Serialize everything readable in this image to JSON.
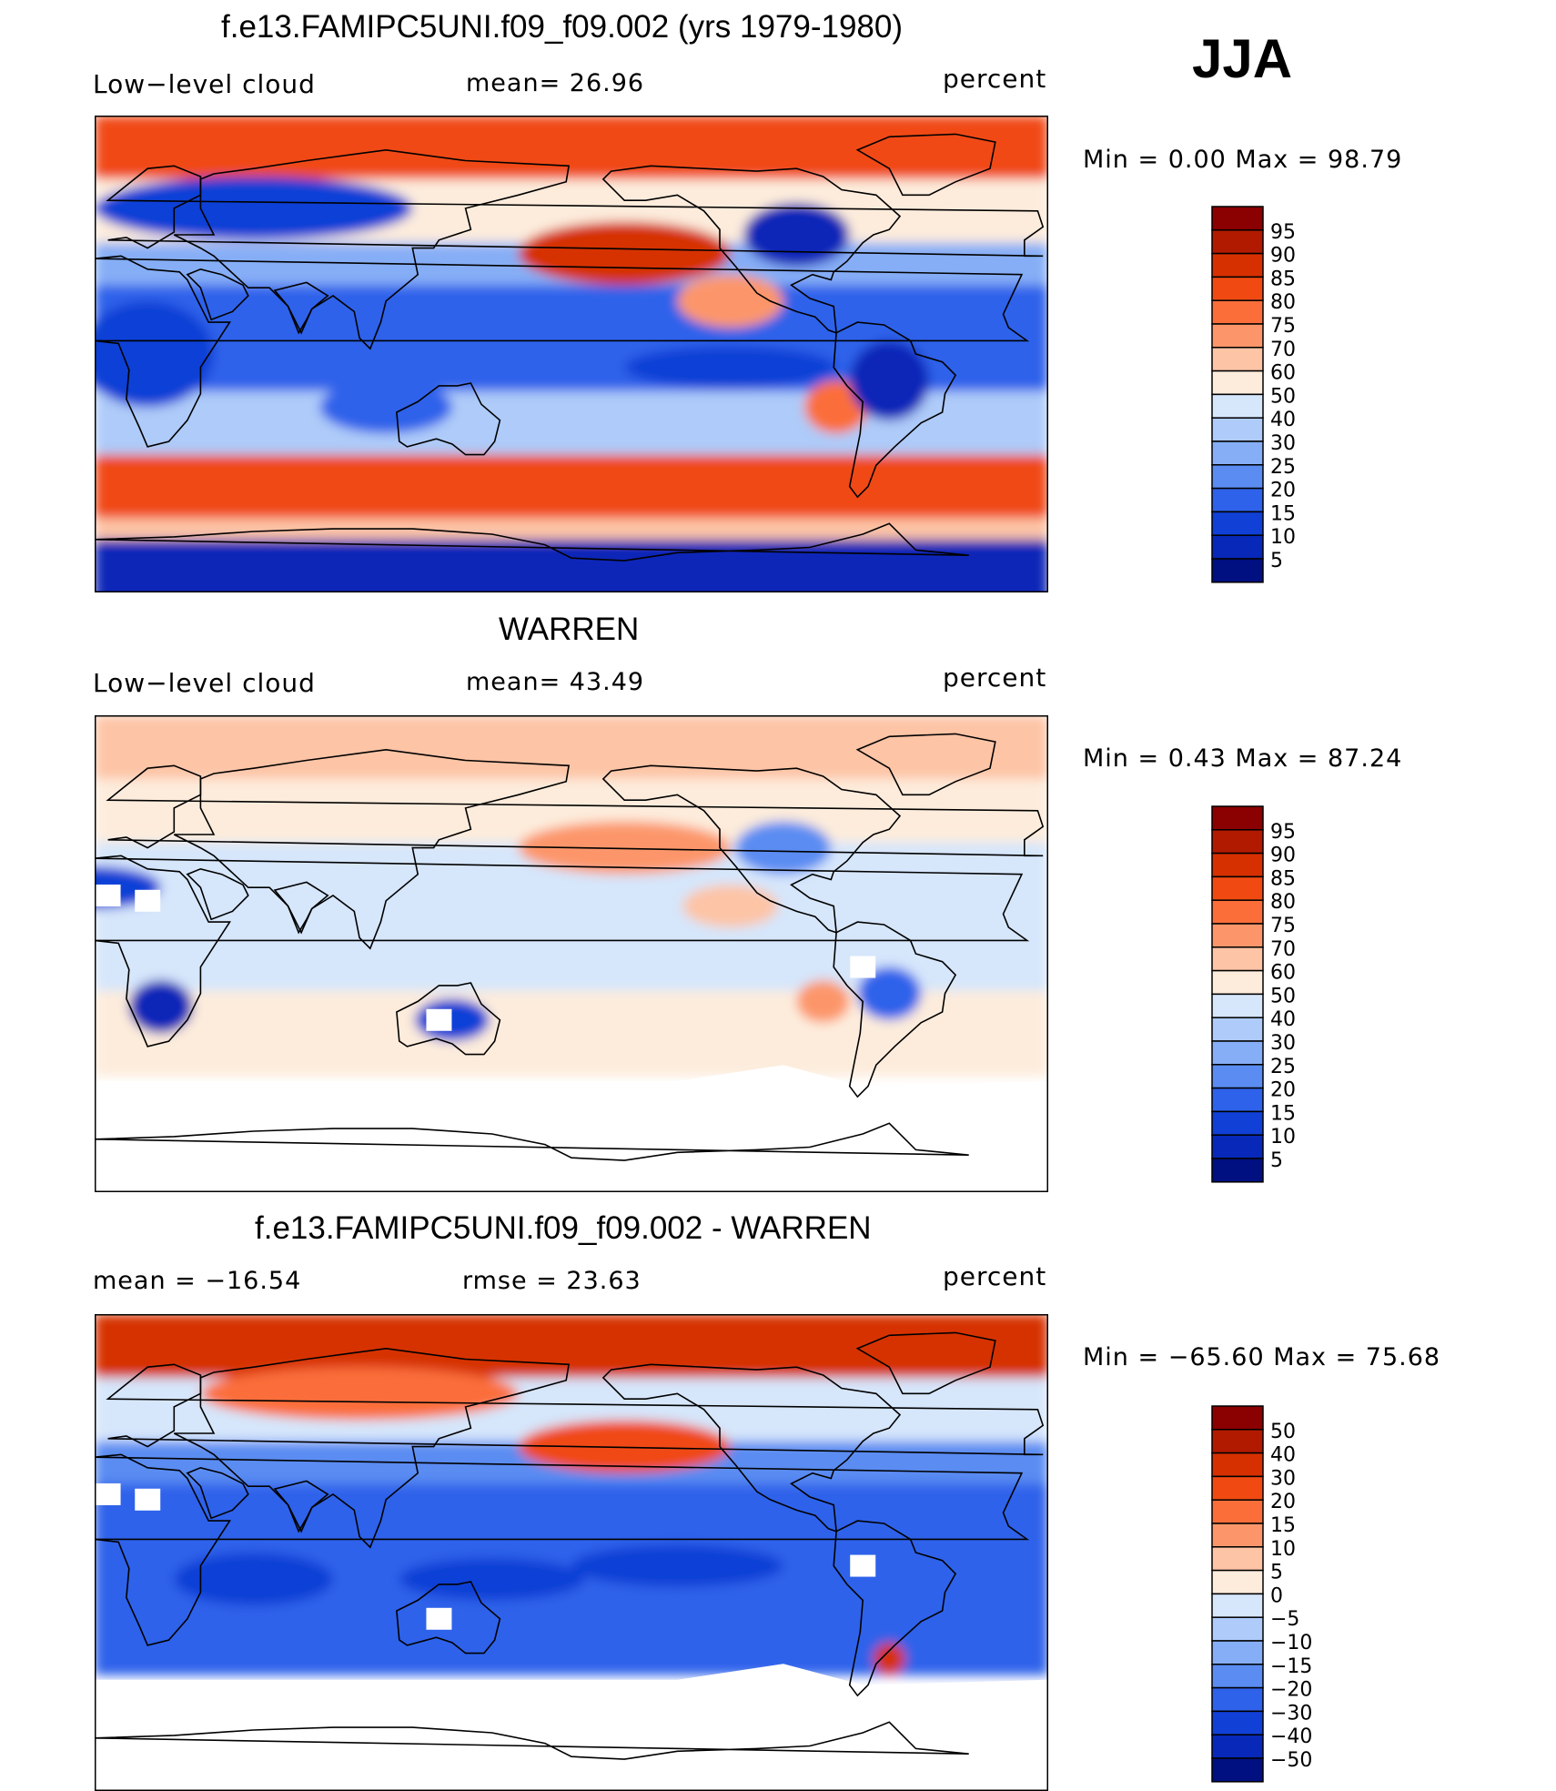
{
  "season": "JJA",
  "panels": [
    {
      "title": "f.e13.FAMIPC5UNI.f09_f09.002 (yrs 1979-1980)",
      "left_label": "Low−level  cloud",
      "center_label": "mean=   26.96",
      "units": "percent",
      "minmax": "Min  =     0.00  Max  =    98.79"
    },
    {
      "title": "WARREN",
      "left_label": "Low−level  cloud",
      "center_label": "mean=   43.49",
      "units": "percent",
      "minmax": "Min  =     0.43  Max  =    87.24"
    },
    {
      "title": "f.e13.FAMIPC5UNI.f09_f09.002 - WARREN",
      "left_label": "mean  =  −16.54",
      "center_label": "rmse  =    23.63",
      "units": "percent",
      "minmax": "Min  =  −65.60  Max  =    75.68"
    }
  ],
  "chart_data": [
    {
      "type": "heatmap",
      "title": "f.e13.FAMIPC5UNI.f09_f09.002 (yrs 1979-1980)",
      "variable": "Low-level cloud",
      "units": "percent",
      "mean": 26.96,
      "min": 0.0,
      "max": 98.79,
      "colorbar_levels": [
        95,
        90,
        85,
        80,
        75,
        70,
        60,
        50,
        40,
        30,
        25,
        20,
        15,
        10,
        5
      ],
      "colorbar_colors": [
        "#8b0000",
        "#b21a00",
        "#d63000",
        "#f04a12",
        "#fb6e3a",
        "#fc966a",
        "#fdc4a6",
        "#fdecdc",
        "#d6e6fb",
        "#aecbf9",
        "#86aef6",
        "#5a8cf2",
        "#2f62ea",
        "#1140d6",
        "#0728b8",
        "#001080"
      ]
    },
    {
      "type": "heatmap",
      "title": "WARREN",
      "variable": "Low-level cloud",
      "units": "percent",
      "mean": 43.49,
      "min": 0.43,
      "max": 87.24,
      "colorbar_levels": [
        95,
        90,
        85,
        80,
        75,
        70,
        60,
        50,
        40,
        30,
        25,
        20,
        15,
        10,
        5
      ],
      "colorbar_colors": [
        "#8b0000",
        "#b21a00",
        "#d63000",
        "#f04a12",
        "#fb6e3a",
        "#fc966a",
        "#fdc4a6",
        "#fdecdc",
        "#d6e6fb",
        "#aecbf9",
        "#86aef6",
        "#5a8cf2",
        "#2f62ea",
        "#1140d6",
        "#0728b8",
        "#001080"
      ]
    },
    {
      "type": "heatmap",
      "title": "f.e13.FAMIPC5UNI.f09_f09.002 - WARREN",
      "units": "percent",
      "mean": -16.54,
      "rmse": 23.63,
      "min": -65.6,
      "max": 75.68,
      "colorbar_levels": [
        50,
        40,
        30,
        20,
        15,
        10,
        5,
        0,
        -5,
        -10,
        -15,
        -20,
        -30,
        -40,
        -50
      ],
      "colorbar_level_labels": [
        "50",
        "40",
        "30",
        "20",
        "15",
        "10",
        "5",
        "0",
        "−5",
        "−10",
        "−15",
        "−20",
        "−30",
        "−40",
        "−50"
      ],
      "colorbar_colors": [
        "#8b0000",
        "#b21a00",
        "#d63000",
        "#f04a12",
        "#fb6e3a",
        "#fc966a",
        "#fdc4a6",
        "#fdecdc",
        "#d6e6fb",
        "#aecbf9",
        "#86aef6",
        "#5a8cf2",
        "#2f62ea",
        "#1140d6",
        "#0728b8",
        "#001080"
      ]
    }
  ]
}
